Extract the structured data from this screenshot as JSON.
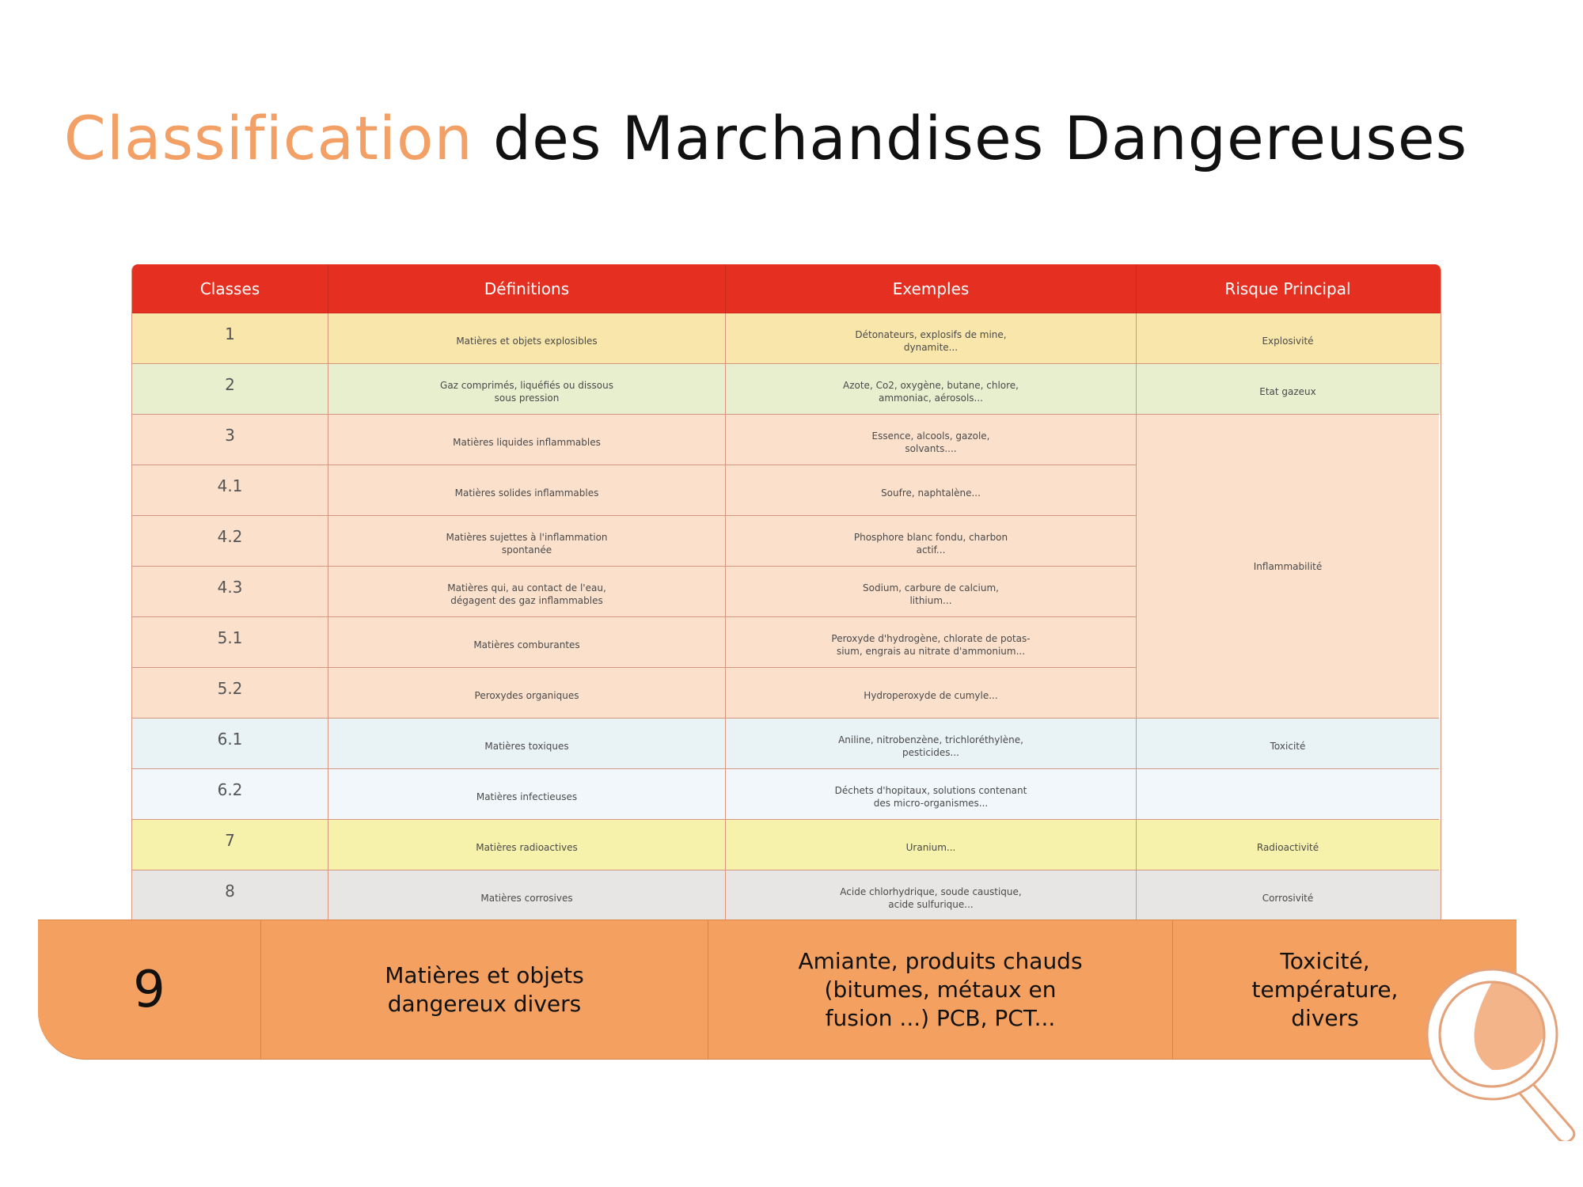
{
  "title": {
    "accent": "Classification",
    "rest": " des Marchandises Dangereuses"
  },
  "headers": [
    "Classes",
    "Définitions",
    "Exemples",
    "Risque Principal"
  ],
  "rows": [
    {
      "classe": "1",
      "definition": "Matières et objets explosibles",
      "exemples": "Détonateurs, explosifs de mine,\ndynamite...",
      "risque": "Explosivité"
    },
    {
      "classe": "2",
      "definition": "Gaz comprimés, liquéfiés ou dissous\nsous pression",
      "exemples": "Azote, Co2, oxygène, butane, chlore,\nammoniac, aérosols...",
      "risque": "Etat gazeux"
    },
    {
      "classe": "3",
      "definition": "Matières liquides inflammables",
      "exemples": "Essence, alcools, gazole,\nsolvants....",
      "risque": ""
    },
    {
      "classe": "4.1",
      "definition": "Matières solides inflammables",
      "exemples": "Soufre, naphtalène...",
      "risque": ""
    },
    {
      "classe": "4.2",
      "definition": "Matières sujettes à l'inflammation\nspontanée",
      "exemples": "Phosphore blanc fondu, charbon\nactif...",
      "risque": ""
    },
    {
      "classe": "4.3",
      "definition": "Matières qui, au contact de l'eau,\ndégagent des gaz inflammables",
      "exemples": "Sodium, carbure de calcium,\nlithium...",
      "risque": ""
    },
    {
      "classe": "5.1",
      "definition": "Matières comburantes",
      "exemples": "Peroxyde d'hydrogène, chlorate de potas-\nsium, engrais au nitrate d'ammonium...",
      "risque": ""
    },
    {
      "classe": "5.2",
      "definition": "Peroxydes organiques",
      "exemples": "Hydroperoxyde de cumyle...",
      "risque": ""
    },
    {
      "classe": "6.1",
      "definition": "Matières toxiques",
      "exemples": "Aniline, nitrobenzène, trichloréthylène,\npesticides...",
      "risque": "Toxicité"
    },
    {
      "classe": "6.2",
      "definition": "Matières infectieuses",
      "exemples": "Déchets d'hopitaux, solutions contenant\ndes micro-organismes...",
      "risque": ""
    },
    {
      "classe": "7",
      "definition": "Matières radioactives",
      "exemples": "Uranium...",
      "risque": "Radioactivité"
    },
    {
      "classe": "8",
      "definition": "Matières corrosives",
      "exemples": "Acide chlorhydrique, soude caustique,\nacide sulfurique...",
      "risque": "Corrosivité"
    }
  ],
  "merged_risk": "Inflammabilité",
  "highlight_row": {
    "classe": "9",
    "definition": "Matières et objets\ndangereux divers",
    "exemples": "Amiante, produits chauds\n(bitumes, métaux en\nfusion ...) PCB, PCT...",
    "risque": "Toxicité,\ntempérature,\ndivers"
  },
  "colors": {
    "accent": "#f2a065",
    "header": "#e53021",
    "highlight": "#f4a060",
    "row_yellow": "#f9e6ab",
    "row_green": "#e7efcf",
    "row_peach": "#fbe0cc",
    "row_blue": "#e9f2f5",
    "row_radio": "#f6f2ab",
    "row_grey": "#e8e5e5"
  },
  "icons": {
    "magnifier": "magnifier-icon"
  }
}
